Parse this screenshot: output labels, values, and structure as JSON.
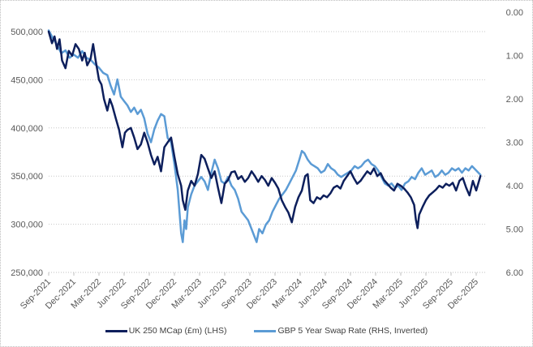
{
  "chart_data": {
    "type": "line",
    "title": "",
    "xlabel": "",
    "ylabel": "",
    "x_tick_labels": [
      "Sep-2021",
      "Dec-2021",
      "Mar-2022",
      "Jun-2022",
      "Sep-2022",
      "Dec-2022",
      "Mar-2023",
      "Jun-2023",
      "Sep-2023",
      "Dec-2023",
      "Mar-2024",
      "Jun-2024",
      "Sep-2024",
      "Dec-2024",
      "Mar-2025",
      "Jun-2025",
      "Sep-2025",
      "Dec-2025"
    ],
    "x_range_months": [
      0,
      51.5
    ],
    "y_left": {
      "min": 250000,
      "max": 500000,
      "step": 50000,
      "tick_labels": [
        "500,000",
        "450,000",
        "400,000",
        "350,000",
        "300,000",
        "250,000"
      ]
    },
    "y_right": {
      "min": 0,
      "max": 6,
      "step": 1,
      "inverted": true,
      "tick_labels": [
        "0.00",
        "1.00",
        "2.00",
        "3.00",
        "4.00",
        "5.00",
        "6.00"
      ]
    },
    "grid": "horizontal dotted",
    "legend_position": "bottom",
    "series": [
      {
        "name": "UK 250 MCap (£m) (LHS)",
        "axis": "left",
        "color": "#0d1f5c",
        "points": [
          [
            0,
            500000
          ],
          [
            0.4,
            488000
          ],
          [
            0.7,
            495000
          ],
          [
            1.0,
            482000
          ],
          [
            1.3,
            492000
          ],
          [
            1.6,
            470000
          ],
          [
            2.0,
            462000
          ],
          [
            2.4,
            480000
          ],
          [
            2.8,
            475000
          ],
          [
            3.2,
            487000
          ],
          [
            3.6,
            482000
          ],
          [
            4.0,
            470000
          ],
          [
            4.3,
            478000
          ],
          [
            4.6,
            465000
          ],
          [
            5.0,
            472000
          ],
          [
            5.3,
            487000
          ],
          [
            5.6,
            470000
          ],
          [
            6.0,
            450000
          ],
          [
            6.3,
            445000
          ],
          [
            6.6,
            430000
          ],
          [
            7.0,
            418000
          ],
          [
            7.3,
            430000
          ],
          [
            7.6,
            423000
          ],
          [
            8.0,
            410000
          ],
          [
            8.4,
            398000
          ],
          [
            8.8,
            380000
          ],
          [
            9.1,
            395000
          ],
          [
            9.4,
            398000
          ],
          [
            9.8,
            400000
          ],
          [
            10.2,
            390000
          ],
          [
            10.6,
            378000
          ],
          [
            11.0,
            383000
          ],
          [
            11.4,
            395000
          ],
          [
            11.8,
            385000
          ],
          [
            12.2,
            372000
          ],
          [
            12.6,
            362000
          ],
          [
            13.0,
            370000
          ],
          [
            13.4,
            355000
          ],
          [
            13.8,
            380000
          ],
          [
            14.2,
            385000
          ],
          [
            14.6,
            390000
          ],
          [
            15.0,
            370000
          ],
          [
            15.4,
            352000
          ],
          [
            15.8,
            340000
          ],
          [
            16.0,
            325000
          ],
          [
            16.3,
            315000
          ],
          [
            16.6,
            335000
          ],
          [
            17.0,
            345000
          ],
          [
            17.4,
            340000
          ],
          [
            17.8,
            352000
          ],
          [
            18.2,
            372000
          ],
          [
            18.6,
            368000
          ],
          [
            19.0,
            358000
          ],
          [
            19.4,
            348000
          ],
          [
            19.8,
            355000
          ],
          [
            20.2,
            338000
          ],
          [
            20.6,
            322000
          ],
          [
            21.0,
            342000
          ],
          [
            21.4,
            346000
          ],
          [
            21.8,
            354000
          ],
          [
            22.2,
            355000
          ],
          [
            22.6,
            347000
          ],
          [
            23.0,
            350000
          ],
          [
            23.4,
            344000
          ],
          [
            23.8,
            348000
          ],
          [
            24.2,
            355000
          ],
          [
            24.6,
            350000
          ],
          [
            25.0,
            344000
          ],
          [
            25.4,
            350000
          ],
          [
            25.8,
            346000
          ],
          [
            26.2,
            340000
          ],
          [
            26.6,
            348000
          ],
          [
            27.0,
            343000
          ],
          [
            27.4,
            337000
          ],
          [
            27.8,
            325000
          ],
          [
            28.2,
            318000
          ],
          [
            28.6,
            312000
          ],
          [
            29.0,
            302000
          ],
          [
            29.4,
            318000
          ],
          [
            29.8,
            328000
          ],
          [
            30.2,
            335000
          ],
          [
            30.6,
            350000
          ],
          [
            30.9,
            352000
          ],
          [
            31.2,
            325000
          ],
          [
            31.6,
            322000
          ],
          [
            32.0,
            328000
          ],
          [
            32.4,
            326000
          ],
          [
            32.8,
            330000
          ],
          [
            33.2,
            328000
          ],
          [
            33.6,
            332000
          ],
          [
            34.0,
            338000
          ],
          [
            34.4,
            340000
          ],
          [
            34.8,
            337000
          ],
          [
            35.2,
            345000
          ],
          [
            35.6,
            350000
          ],
          [
            36.0,
            355000
          ],
          [
            36.4,
            348000
          ],
          [
            36.8,
            342000
          ],
          [
            37.2,
            345000
          ],
          [
            37.6,
            350000
          ],
          [
            38.0,
            355000
          ],
          [
            38.4,
            352000
          ],
          [
            38.8,
            358000
          ],
          [
            39.2,
            350000
          ],
          [
            39.6,
            353000
          ],
          [
            40.0,
            346000
          ],
          [
            40.4,
            342000
          ],
          [
            40.8,
            338000
          ],
          [
            41.2,
            335000
          ],
          [
            41.6,
            342000
          ],
          [
            42.0,
            340000
          ],
          [
            42.4,
            337000
          ],
          [
            42.8,
            333000
          ],
          [
            43.2,
            328000
          ],
          [
            43.6,
            320000
          ],
          [
            43.8,
            305000
          ],
          [
            44.0,
            296000
          ],
          [
            44.2,
            310000
          ],
          [
            44.6,
            318000
          ],
          [
            45.0,
            325000
          ],
          [
            45.4,
            330000
          ],
          [
            45.8,
            333000
          ],
          [
            46.2,
            336000
          ],
          [
            46.6,
            340000
          ],
          [
            47.0,
            338000
          ],
          [
            47.4,
            342000
          ],
          [
            47.8,
            340000
          ],
          [
            48.2,
            343000
          ],
          [
            48.6,
            335000
          ],
          [
            49.0,
            345000
          ],
          [
            49.4,
            348000
          ],
          [
            49.8,
            338000
          ],
          [
            50.2,
            330000
          ],
          [
            50.6,
            345000
          ],
          [
            51.0,
            335000
          ],
          [
            51.5,
            350000
          ]
        ]
      },
      {
        "name": "GBP 5 Year Swap Rate (RHS, Inverted)",
        "axis": "right",
        "color": "#5b9bd5",
        "points": [
          [
            0,
            0.42
          ],
          [
            0.5,
            0.6
          ],
          [
            1.0,
            0.75
          ],
          [
            1.5,
            0.95
          ],
          [
            2.0,
            0.88
          ],
          [
            2.5,
            1.05
          ],
          [
            3.0,
            0.98
          ],
          [
            3.5,
            1.05
          ],
          [
            4.0,
            0.9
          ],
          [
            4.5,
            1.05
          ],
          [
            5.0,
            1.1
          ],
          [
            5.5,
            1.2
          ],
          [
            6.0,
            1.28
          ],
          [
            6.5,
            1.4
          ],
          [
            7.0,
            1.45
          ],
          [
            7.4,
            1.7
          ],
          [
            7.8,
            1.9
          ],
          [
            8.2,
            1.55
          ],
          [
            8.6,
            1.95
          ],
          [
            9.0,
            2.05
          ],
          [
            9.4,
            2.15
          ],
          [
            9.8,
            2.3
          ],
          [
            10.2,
            2.2
          ],
          [
            10.6,
            2.35
          ],
          [
            11.0,
            2.25
          ],
          [
            11.4,
            2.45
          ],
          [
            11.8,
            2.8
          ],
          [
            12.2,
            3.0
          ],
          [
            12.6,
            2.7
          ],
          [
            13.0,
            2.5
          ],
          [
            13.4,
            2.35
          ],
          [
            13.8,
            2.4
          ],
          [
            14.2,
            2.9
          ],
          [
            14.6,
            3.0
          ],
          [
            15.0,
            3.5
          ],
          [
            15.4,
            4.1
          ],
          [
            15.6,
            4.6
          ],
          [
            15.8,
            5.1
          ],
          [
            16.0,
            5.3
          ],
          [
            16.2,
            4.8
          ],
          [
            16.4,
            5.0
          ],
          [
            16.6,
            4.5
          ],
          [
            17.0,
            4.2
          ],
          [
            17.4,
            4.0
          ],
          [
            17.8,
            3.9
          ],
          [
            18.2,
            3.8
          ],
          [
            18.6,
            3.9
          ],
          [
            19.0,
            4.1
          ],
          [
            19.4,
            3.7
          ],
          [
            19.8,
            3.4
          ],
          [
            20.2,
            3.6
          ],
          [
            20.6,
            3.9
          ],
          [
            21.0,
            3.95
          ],
          [
            21.4,
            3.8
          ],
          [
            21.8,
            4.0
          ],
          [
            22.2,
            4.1
          ],
          [
            22.6,
            4.3
          ],
          [
            23.0,
            4.6
          ],
          [
            23.4,
            4.7
          ],
          [
            23.8,
            4.8
          ],
          [
            24.2,
            5.0
          ],
          [
            24.6,
            5.2
          ],
          [
            24.8,
            5.3
          ],
          [
            25.1,
            5.0
          ],
          [
            25.5,
            5.1
          ],
          [
            25.9,
            4.9
          ],
          [
            26.3,
            4.8
          ],
          [
            26.7,
            4.6
          ],
          [
            27.1,
            4.45
          ],
          [
            27.5,
            4.3
          ],
          [
            27.9,
            4.2
          ],
          [
            28.3,
            4.1
          ],
          [
            28.7,
            3.95
          ],
          [
            29.1,
            3.8
          ],
          [
            29.5,
            3.65
          ],
          [
            29.9,
            3.4
          ],
          [
            30.2,
            3.2
          ],
          [
            30.5,
            3.25
          ],
          [
            30.9,
            3.4
          ],
          [
            31.3,
            3.5
          ],
          [
            31.7,
            3.55
          ],
          [
            32.1,
            3.6
          ],
          [
            32.5,
            3.7
          ],
          [
            32.9,
            3.65
          ],
          [
            33.3,
            3.5
          ],
          [
            33.7,
            3.6
          ],
          [
            34.1,
            3.65
          ],
          [
            34.5,
            3.75
          ],
          [
            34.9,
            3.8
          ],
          [
            35.3,
            3.75
          ],
          [
            35.7,
            3.7
          ],
          [
            36.1,
            3.65
          ],
          [
            36.5,
            3.55
          ],
          [
            36.9,
            3.6
          ],
          [
            37.3,
            3.55
          ],
          [
            37.7,
            3.45
          ],
          [
            38.1,
            3.4
          ],
          [
            38.5,
            3.5
          ],
          [
            38.9,
            3.55
          ],
          [
            39.3,
            3.65
          ],
          [
            39.7,
            3.8
          ],
          [
            40.1,
            3.95
          ],
          [
            40.5,
            4.0
          ],
          [
            40.9,
            3.95
          ],
          [
            41.3,
            4.05
          ],
          [
            41.7,
            4.0
          ],
          [
            42.1,
            4.1
          ],
          [
            42.5,
            3.95
          ],
          [
            42.9,
            3.9
          ],
          [
            43.3,
            3.8
          ],
          [
            43.7,
            3.85
          ],
          [
            44.1,
            3.7
          ],
          [
            44.5,
            3.6
          ],
          [
            44.9,
            3.75
          ],
          [
            45.3,
            3.7
          ],
          [
            45.7,
            3.65
          ],
          [
            46.1,
            3.8
          ],
          [
            46.5,
            3.75
          ],
          [
            46.9,
            3.65
          ],
          [
            47.3,
            3.75
          ],
          [
            47.7,
            3.7
          ],
          [
            48.1,
            3.6
          ],
          [
            48.5,
            3.65
          ],
          [
            48.9,
            3.6
          ],
          [
            49.3,
            3.7
          ],
          [
            49.7,
            3.6
          ],
          [
            50.1,
            3.65
          ],
          [
            50.5,
            3.55
          ],
          [
            51.0,
            3.65
          ],
          [
            51.5,
            3.75
          ]
        ]
      }
    ]
  }
}
